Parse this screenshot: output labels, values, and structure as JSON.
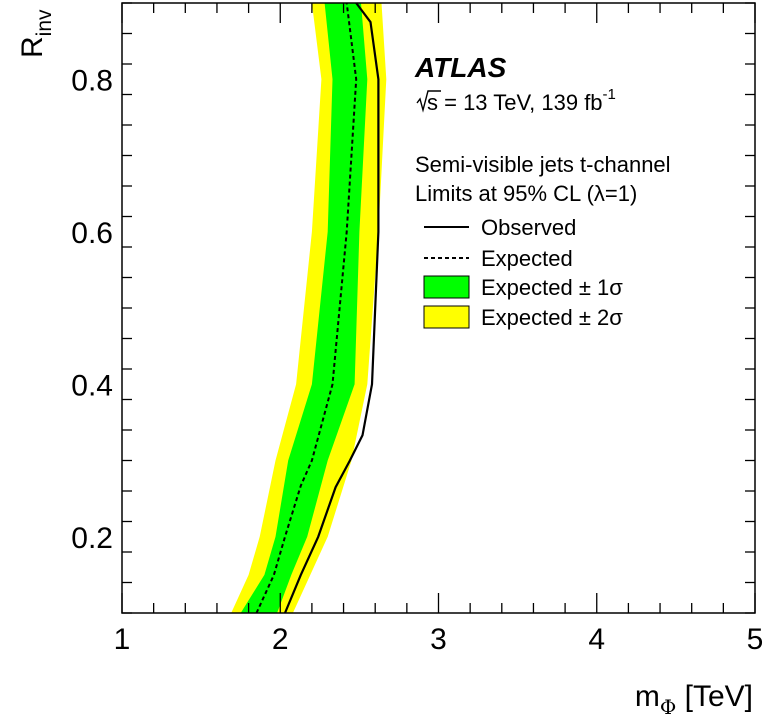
{
  "chart_data": {
    "type": "line",
    "xlabel": {
      "main": "m",
      "sub": "Φ",
      "unit": " [TeV]"
    },
    "ylabel": {
      "main": "R",
      "sub": "inv"
    },
    "xlim": [
      1,
      5
    ],
    "ylim": [
      0.1,
      0.9
    ],
    "x_ticks": [
      1,
      2,
      3,
      4,
      5
    ],
    "x_tick_labels": [
      "1",
      "2",
      "3",
      "4",
      "5"
    ],
    "y_ticks": [
      0.2,
      0.4,
      0.6,
      0.8
    ],
    "y_tick_labels": [
      "0.2",
      "0.4",
      "0.6",
      "0.8"
    ],
    "grid": false,
    "legend_position": "top-right",
    "annotation": {
      "experiment": "ATLAS",
      "energy_sqrt": "s",
      "energy_rest": " = 13 TeV, 139 fb",
      "lumi_sup": "-1",
      "line1": "Semi-visible jets t-channel",
      "line2": "Limits at 95% CL (λ=1)"
    },
    "legend": [
      {
        "label": "Observed",
        "style": "solid-line"
      },
      {
        "label": "Expected",
        "style": "dashed-line"
      },
      {
        "label": "Expected ± 1σ",
        "style": "green-band"
      },
      {
        "label": "Expected ± 2σ",
        "style": "yellow-band"
      }
    ],
    "colors": {
      "band_1sigma": "#00ff00",
      "band_2sigma": "#ffff00",
      "line": "#000000"
    },
    "series": [
      {
        "name": "Observed",
        "points": [
          [
            2.03,
            0.1
          ],
          [
            2.13,
            0.15
          ],
          [
            2.24,
            0.2
          ],
          [
            2.35,
            0.265
          ],
          [
            2.44,
            0.3
          ],
          [
            2.52,
            0.333
          ],
          [
            2.58,
            0.4
          ],
          [
            2.62,
            0.6
          ],
          [
            2.62,
            0.8
          ],
          [
            2.57,
            0.875
          ],
          [
            2.48,
            0.9
          ]
        ]
      },
      {
        "name": "Expected",
        "points": [
          [
            1.85,
            0.1
          ],
          [
            1.96,
            0.15
          ],
          [
            2.03,
            0.2
          ],
          [
            2.13,
            0.267
          ],
          [
            2.2,
            0.3
          ],
          [
            2.33,
            0.4
          ],
          [
            2.42,
            0.6
          ],
          [
            2.48,
            0.8
          ],
          [
            2.42,
            0.9
          ]
        ]
      },
      {
        "name": "Expected ± 1σ",
        "lower": [
          [
            1.75,
            0.1
          ],
          [
            1.9,
            0.15
          ],
          [
            1.97,
            0.2
          ],
          [
            2.05,
            0.3
          ],
          [
            2.2,
            0.4
          ],
          [
            2.3,
            0.6
          ],
          [
            2.33,
            0.8
          ],
          [
            2.28,
            0.9
          ]
        ],
        "upper": [
          [
            1.98,
            0.1
          ],
          [
            2.07,
            0.15
          ],
          [
            2.17,
            0.2
          ],
          [
            2.3,
            0.3
          ],
          [
            2.47,
            0.4
          ],
          [
            2.5,
            0.6
          ],
          [
            2.55,
            0.8
          ],
          [
            2.51,
            0.9
          ]
        ]
      },
      {
        "name": "Expected ± 2σ",
        "lower": [
          [
            1.69,
            0.1
          ],
          [
            1.8,
            0.15
          ],
          [
            1.87,
            0.2
          ],
          [
            1.97,
            0.3
          ],
          [
            2.1,
            0.4
          ],
          [
            2.2,
            0.6
          ],
          [
            2.26,
            0.8
          ],
          [
            2.2,
            0.9
          ]
        ],
        "upper": [
          [
            2.08,
            0.1
          ],
          [
            2.19,
            0.15
          ],
          [
            2.3,
            0.2
          ],
          [
            2.45,
            0.3
          ],
          [
            2.55,
            0.4
          ],
          [
            2.62,
            0.6
          ],
          [
            2.67,
            0.8
          ],
          [
            2.64,
            0.9
          ]
        ]
      }
    ]
  }
}
